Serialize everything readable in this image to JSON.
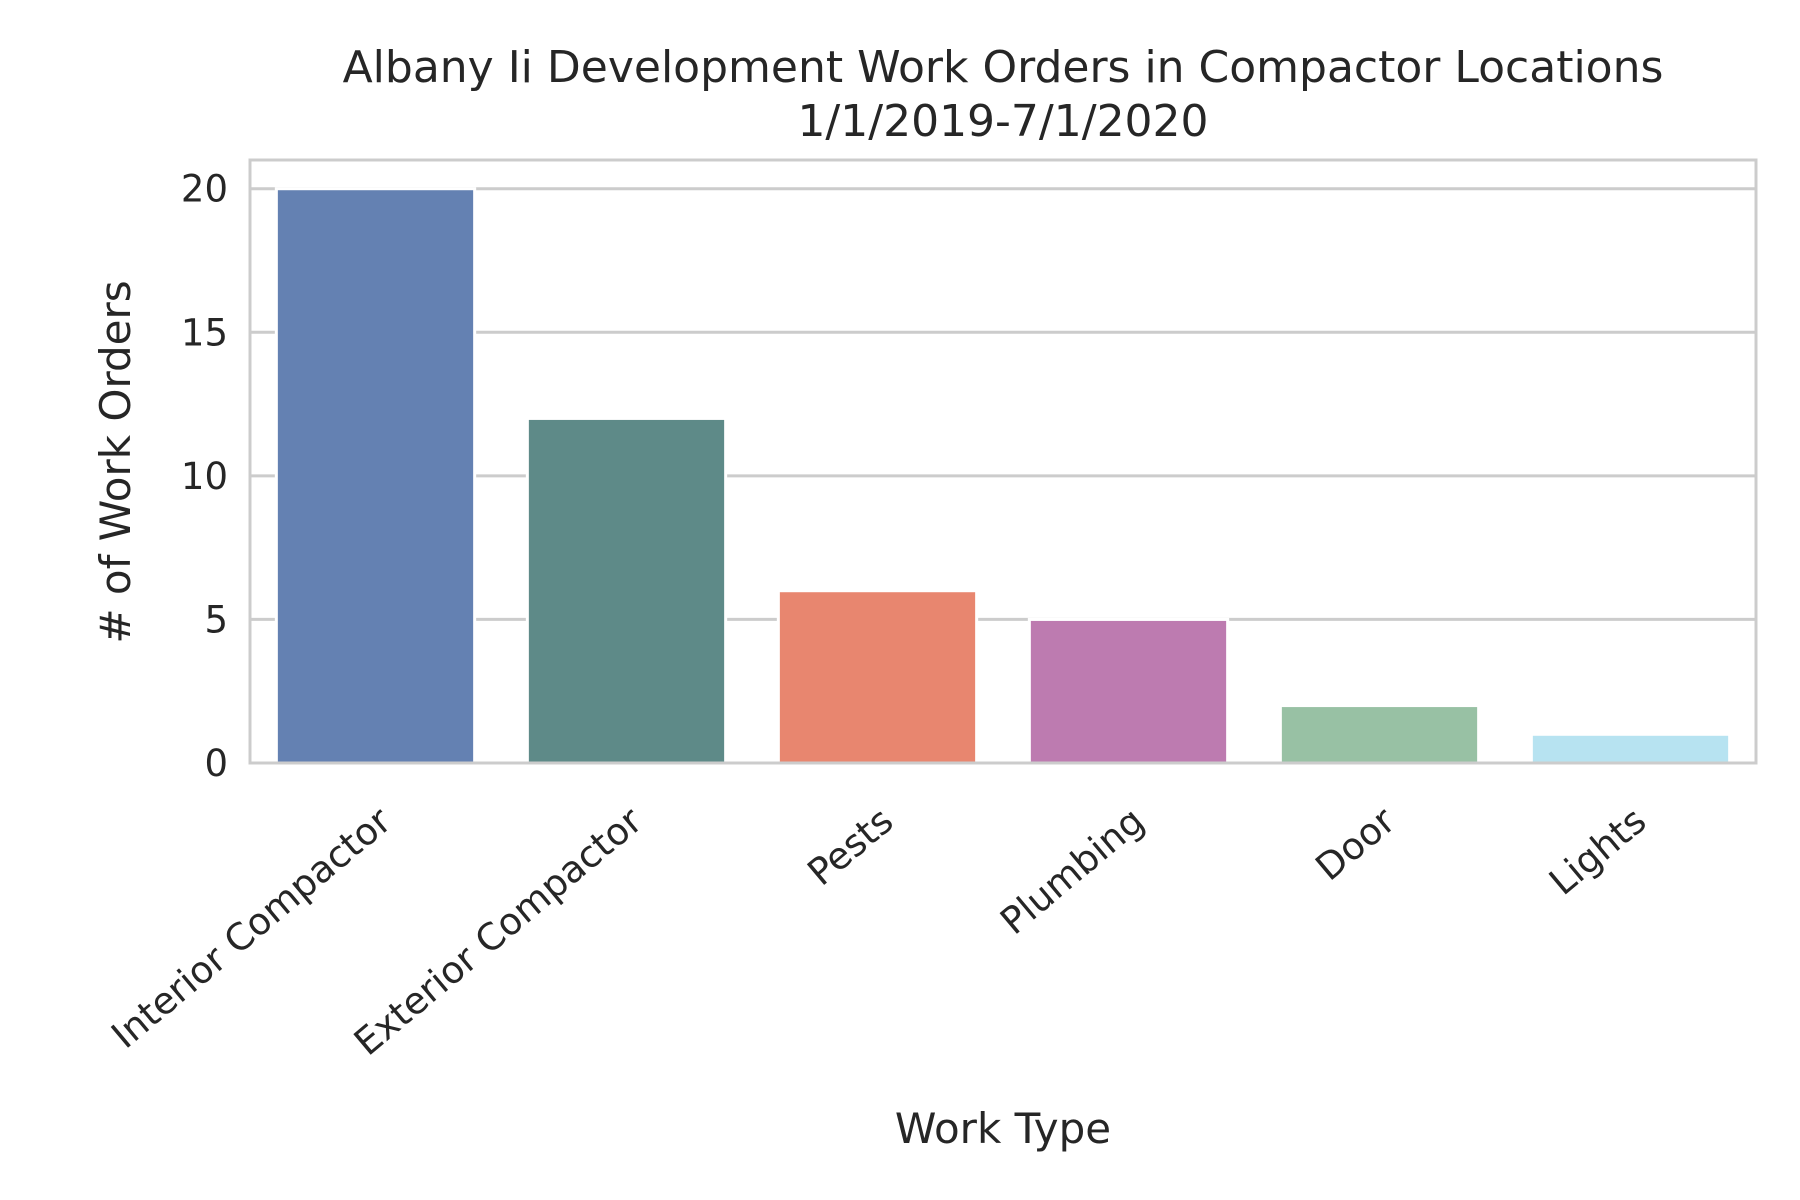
{
  "chart_data": {
    "type": "bar",
    "title": "Albany Ii Development Work Orders in Compactor Locations",
    "subtitle": "1/1/2019-7/1/2020",
    "xlabel": "Work Type",
    "ylabel": "# of Work Orders",
    "categories": [
      "Interior Compactor",
      "Exterior Compactor",
      "Pests",
      "Plumbing",
      "Door",
      "Lights"
    ],
    "values": [
      20,
      12,
      6,
      5,
      2,
      1
    ],
    "colors": [
      "#6481b2",
      "#5e8a88",
      "#e8866f",
      "#bd7bb0",
      "#98c1a4",
      "#b7e3f1"
    ],
    "ylim": [
      0,
      21
    ],
    "yticks": [
      0,
      5,
      10,
      15,
      20
    ],
    "grid": true,
    "legend": "none"
  }
}
